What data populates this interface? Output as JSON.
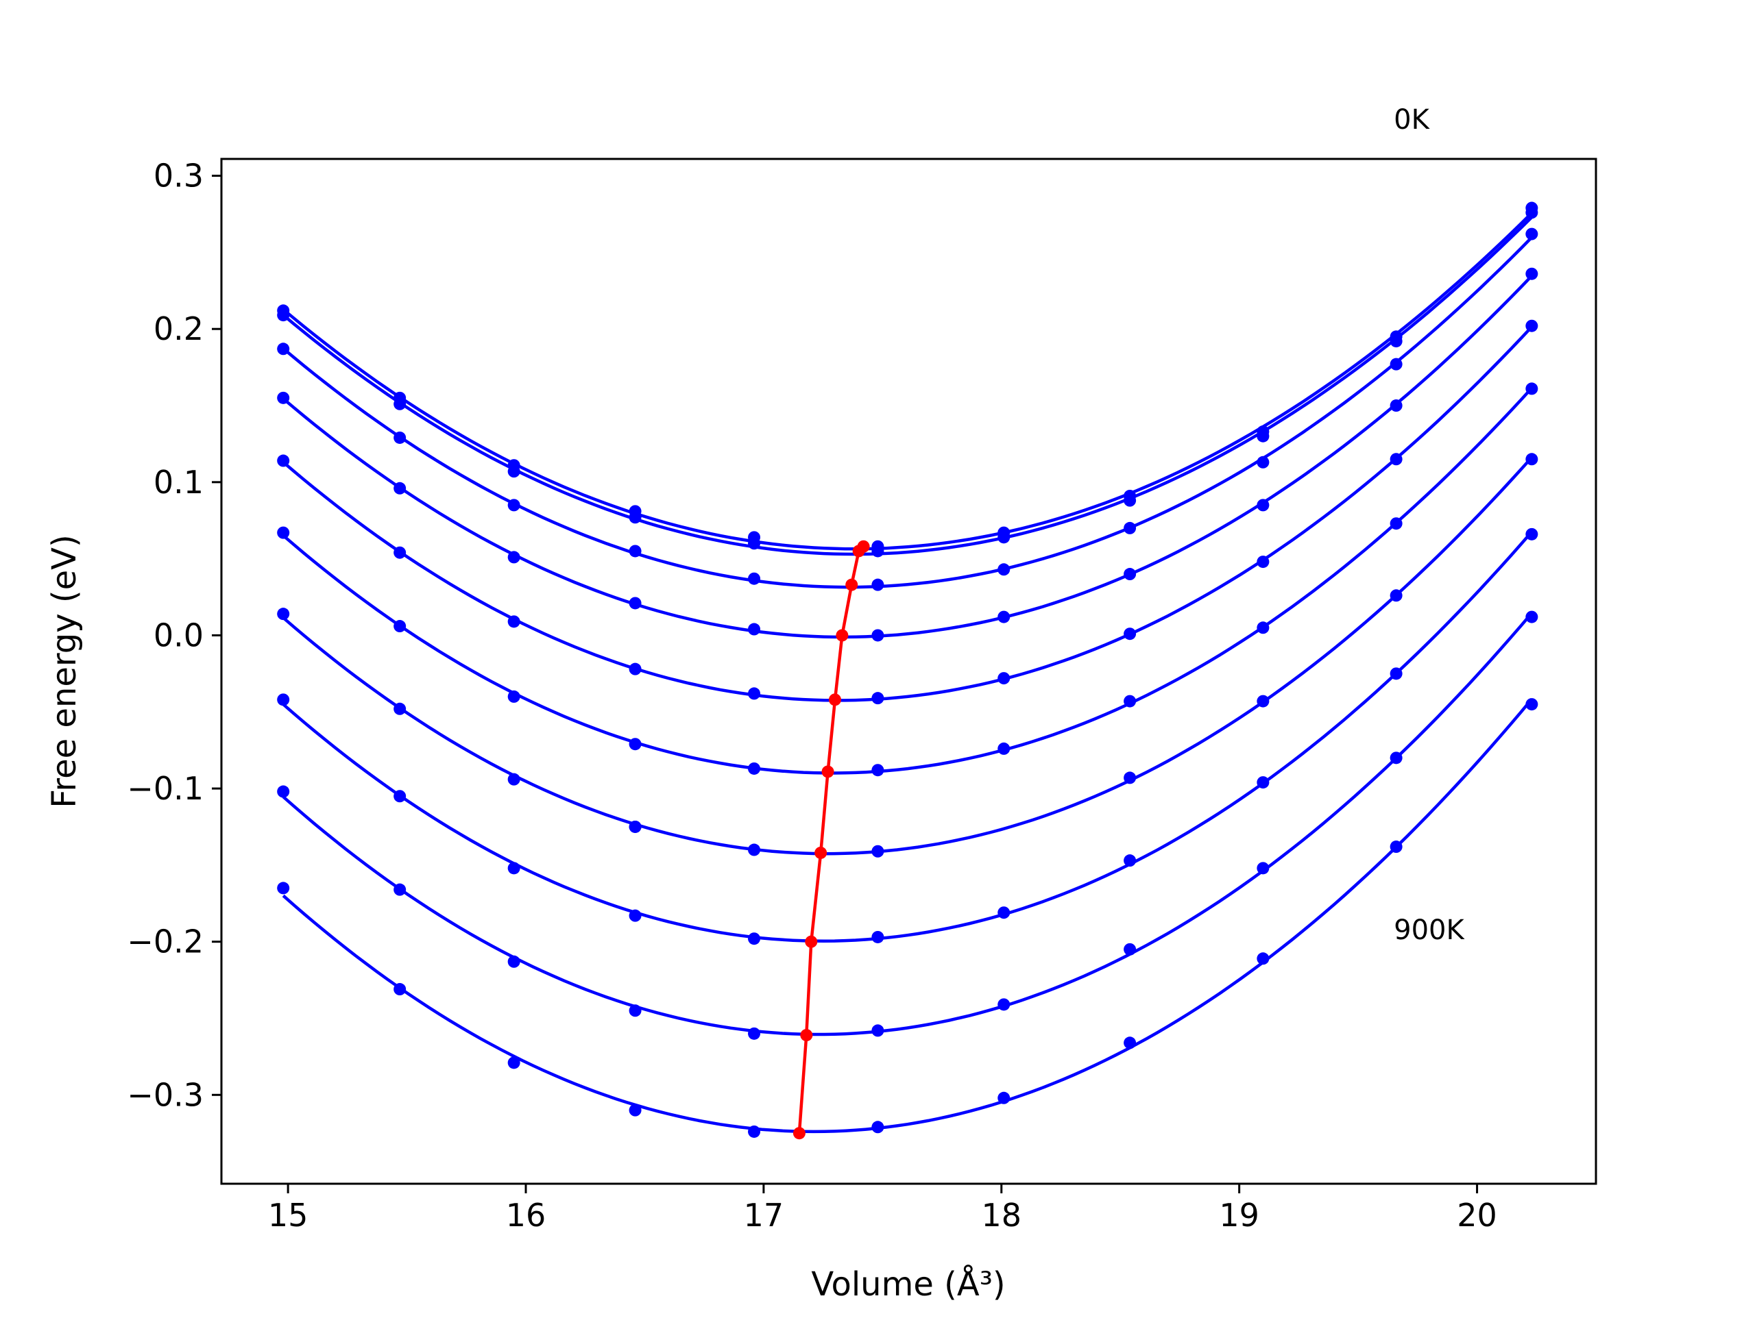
{
  "chart_data": {
    "type": "line",
    "xlabel": "Volume (Å³)",
    "ylabel": "Free energy (eV)",
    "xlim": [
      14.72,
      20.5
    ],
    "ylim": [
      -0.358,
      0.311
    ],
    "xticks": [
      15,
      16,
      17,
      18,
      19,
      20
    ],
    "xtick_labels": [
      "15",
      "16",
      "17",
      "18",
      "19",
      "20"
    ],
    "yticks": [
      -0.3,
      -0.2,
      -0.1,
      0.0,
      0.1,
      0.2,
      0.3
    ],
    "ytick_labels": [
      "−0.3",
      "−0.2",
      "−0.1",
      "0.0",
      "0.1",
      "0.2",
      "0.3"
    ],
    "annotations": [
      {
        "text": "0K",
        "x": 19.65,
        "y": 0.337
      },
      {
        "text": "900K",
        "x": 19.65,
        "y": -0.192
      }
    ],
    "grid": false,
    "x": [
      14.98,
      15.47,
      15.95,
      16.46,
      16.96,
      17.48,
      18.01,
      18.54,
      19.1,
      19.66,
      20.23
    ],
    "series": [
      {
        "color": "#0000ff",
        "values": [
          0.212,
          0.155,
          0.111,
          0.081,
          0.064,
          0.058,
          0.067,
          0.091,
          0.133,
          0.195,
          0.279
        ]
      },
      {
        "color": "#0000ff",
        "values": [
          0.209,
          0.151,
          0.107,
          0.077,
          0.06,
          0.055,
          0.064,
          0.088,
          0.13,
          0.192,
          0.276
        ]
      },
      {
        "color": "#0000ff",
        "values": [
          0.187,
          0.129,
          0.085,
          0.055,
          0.037,
          0.033,
          0.043,
          0.07,
          0.113,
          0.177,
          0.262
        ]
      },
      {
        "color": "#0000ff",
        "values": [
          0.155,
          0.096,
          0.051,
          0.021,
          0.004,
          0.0,
          0.012,
          0.04,
          0.085,
          0.15,
          0.236
        ]
      },
      {
        "color": "#0000ff",
        "values": [
          0.114,
          0.054,
          0.009,
          -0.022,
          -0.038,
          -0.041,
          -0.028,
          0.001,
          0.048,
          0.115,
          0.202
        ]
      },
      {
        "color": "#0000ff",
        "values": [
          0.067,
          0.006,
          -0.04,
          -0.071,
          -0.087,
          -0.088,
          -0.074,
          -0.043,
          0.005,
          0.073,
          0.161
        ]
      },
      {
        "color": "#0000ff",
        "values": [
          0.014,
          -0.048,
          -0.094,
          -0.125,
          -0.14,
          -0.141,
          -0.125,
          -0.093,
          -0.043,
          0.026,
          0.115
        ]
      },
      {
        "color": "#0000ff",
        "values": [
          -0.042,
          -0.105,
          -0.152,
          -0.183,
          -0.198,
          -0.197,
          -0.181,
          -0.147,
          -0.096,
          -0.025,
          0.066
        ]
      },
      {
        "color": "#0000ff",
        "values": [
          -0.102,
          -0.166,
          -0.213,
          -0.245,
          -0.26,
          -0.258,
          -0.241,
          -0.205,
          -0.152,
          -0.08,
          0.012
        ]
      },
      {
        "color": "#0000ff",
        "values": [
          -0.165,
          -0.231,
          -0.279,
          -0.31,
          -0.324,
          -0.321,
          -0.302,
          -0.266,
          -0.211,
          -0.138,
          -0.045
        ]
      }
    ],
    "minima": {
      "color": "#ff0000",
      "x": [
        17.42,
        17.4,
        17.37,
        17.33,
        17.3,
        17.27,
        17.24,
        17.2,
        17.18,
        17.15
      ],
      "y": [
        0.058,
        0.055,
        0.033,
        0.0,
        -0.042,
        -0.089,
        -0.142,
        -0.2,
        -0.261,
        -0.325
      ]
    }
  }
}
